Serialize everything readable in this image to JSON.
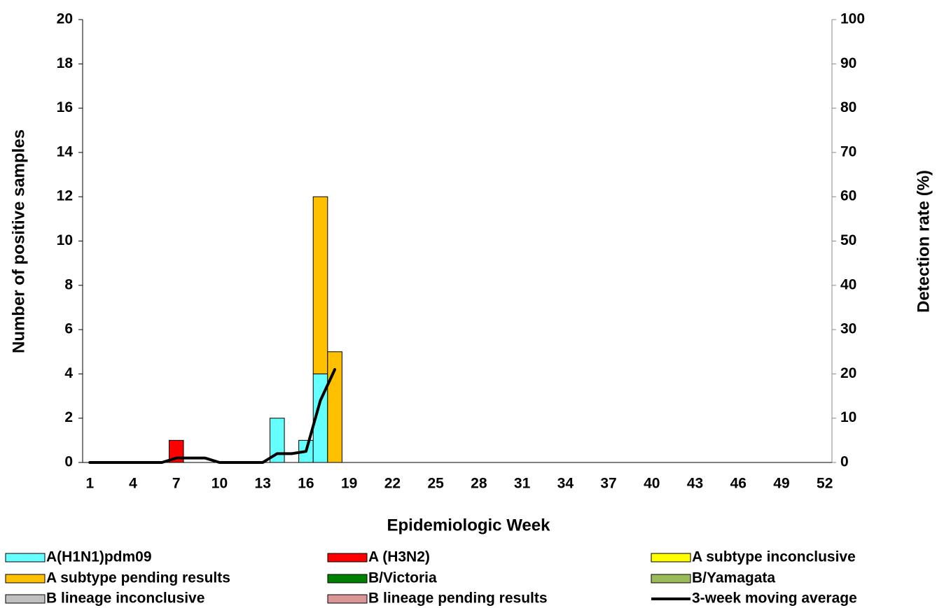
{
  "chart_data": {
    "type": "bar",
    "stacked": true,
    "x_label": "Epidemiologic Week",
    "y_label": "Number of positive samples",
    "y2_label": "Detection rate (%)",
    "categories": [
      1,
      null,
      null,
      4,
      null,
      null,
      7,
      null,
      null,
      10,
      null,
      null,
      13,
      null,
      null,
      16,
      null,
      null,
      19,
      null,
      null,
      22,
      null,
      null,
      25,
      null,
      null,
      28,
      null,
      null,
      31,
      null,
      null,
      34,
      null,
      null,
      37,
      null,
      null,
      40,
      null,
      null,
      43,
      null,
      null,
      46,
      null,
      null,
      49,
      null,
      null,
      52
    ],
    "ylim": [
      0,
      20
    ],
    "yticks": [
      0,
      2,
      4,
      6,
      8,
      10,
      12,
      14,
      16,
      18,
      20
    ],
    "y2lim": [
      0,
      100
    ],
    "y2ticks": [
      0,
      10,
      20,
      30,
      40,
      50,
      60,
      70,
      80,
      90,
      100
    ],
    "series": [
      {
        "name": "A(H1N1)pdm09",
        "color": "#66ffff",
        "values": [
          0,
          0,
          0,
          0,
          0,
          0,
          0,
          0,
          0,
          0,
          0,
          0,
          0,
          2,
          0,
          1,
          4,
          0,
          0,
          0,
          0,
          0,
          0,
          0,
          0,
          0,
          0,
          0,
          0,
          0,
          0,
          0,
          0,
          0,
          0,
          0,
          0,
          0,
          0,
          0,
          0,
          0,
          0,
          0,
          0,
          0,
          0,
          0,
          0,
          0,
          0,
          0
        ]
      },
      {
        "name": "A (H3N2)",
        "color": "#ff0000",
        "values": [
          0,
          0,
          0,
          0,
          0,
          0,
          1,
          0,
          0,
          0,
          0,
          0,
          0,
          0,
          0,
          0,
          0,
          0,
          0,
          0,
          0,
          0,
          0,
          0,
          0,
          0,
          0,
          0,
          0,
          0,
          0,
          0,
          0,
          0,
          0,
          0,
          0,
          0,
          0,
          0,
          0,
          0,
          0,
          0,
          0,
          0,
          0,
          0,
          0,
          0,
          0,
          0
        ]
      },
      {
        "name": "A subtype inconclusive",
        "color": "#ffff00",
        "values": [
          0,
          0,
          0,
          0,
          0,
          0,
          0,
          0,
          0,
          0,
          0,
          0,
          0,
          0,
          0,
          0,
          0,
          0,
          0,
          0,
          0,
          0,
          0,
          0,
          0,
          0,
          0,
          0,
          0,
          0,
          0,
          0,
          0,
          0,
          0,
          0,
          0,
          0,
          0,
          0,
          0,
          0,
          0,
          0,
          0,
          0,
          0,
          0,
          0,
          0,
          0,
          0
        ]
      },
      {
        "name": "A subtype pending results",
        "color": "#ffc000",
        "values": [
          0,
          0,
          0,
          0,
          0,
          0,
          0,
          0,
          0,
          0,
          0,
          0,
          0,
          0,
          0,
          0,
          8,
          5,
          0,
          0,
          0,
          0,
          0,
          0,
          0,
          0,
          0,
          0,
          0,
          0,
          0,
          0,
          0,
          0,
          0,
          0,
          0,
          0,
          0,
          0,
          0,
          0,
          0,
          0,
          0,
          0,
          0,
          0,
          0,
          0,
          0,
          0
        ]
      },
      {
        "name": "B/Victoria",
        "color": "#008000",
        "values": [
          0,
          0,
          0,
          0,
          0,
          0,
          0,
          0,
          0,
          0,
          0,
          0,
          0,
          0,
          0,
          0,
          0,
          0,
          0,
          0,
          0,
          0,
          0,
          0,
          0,
          0,
          0,
          0,
          0,
          0,
          0,
          0,
          0,
          0,
          0,
          0,
          0,
          0,
          0,
          0,
          0,
          0,
          0,
          0,
          0,
          0,
          0,
          0,
          0,
          0,
          0,
          0
        ]
      },
      {
        "name": "B/Yamagata",
        "color": "#9bbb59",
        "values": [
          0,
          0,
          0,
          0,
          0,
          0,
          0,
          0,
          0,
          0,
          0,
          0,
          0,
          0,
          0,
          0,
          0,
          0,
          0,
          0,
          0,
          0,
          0,
          0,
          0,
          0,
          0,
          0,
          0,
          0,
          0,
          0,
          0,
          0,
          0,
          0,
          0,
          0,
          0,
          0,
          0,
          0,
          0,
          0,
          0,
          0,
          0,
          0,
          0,
          0,
          0,
          0
        ]
      },
      {
        "name": "B lineage inconclusive",
        "color": "#c0c0c0",
        "values": [
          0,
          0,
          0,
          0,
          0,
          0,
          0,
          0,
          0,
          0,
          0,
          0,
          0,
          0,
          0,
          0,
          0,
          0,
          0,
          0,
          0,
          0,
          0,
          0,
          0,
          0,
          0,
          0,
          0,
          0,
          0,
          0,
          0,
          0,
          0,
          0,
          0,
          0,
          0,
          0,
          0,
          0,
          0,
          0,
          0,
          0,
          0,
          0,
          0,
          0,
          0,
          0
        ]
      },
      {
        "name": "B lineage pending results",
        "color": "#da9694",
        "values": [
          0,
          0,
          0,
          0,
          0,
          0,
          0,
          0,
          0,
          0,
          0,
          0,
          0,
          0,
          0,
          0,
          0,
          0,
          0,
          0,
          0,
          0,
          0,
          0,
          0,
          0,
          0,
          0,
          0,
          0,
          0,
          0,
          0,
          0,
          0,
          0,
          0,
          0,
          0,
          0,
          0,
          0,
          0,
          0,
          0,
          0,
          0,
          0,
          0,
          0,
          0,
          0
        ]
      },
      {
        "name": "3-week moving average",
        "color": "#000000",
        "type": "line",
        "axis": "y2",
        "values": [
          0,
          0,
          0,
          0,
          0,
          0,
          1,
          1,
          1,
          0,
          0,
          0,
          0,
          2,
          2,
          2.5,
          14,
          21,
          null,
          null,
          null,
          null,
          null,
          null,
          null,
          null,
          null,
          null,
          null,
          null,
          null,
          null,
          null,
          null,
          null,
          null,
          null,
          null,
          null,
          null,
          null,
          null,
          null,
          null,
          null,
          null,
          null,
          null,
          null,
          null,
          null,
          null
        ]
      }
    ]
  }
}
